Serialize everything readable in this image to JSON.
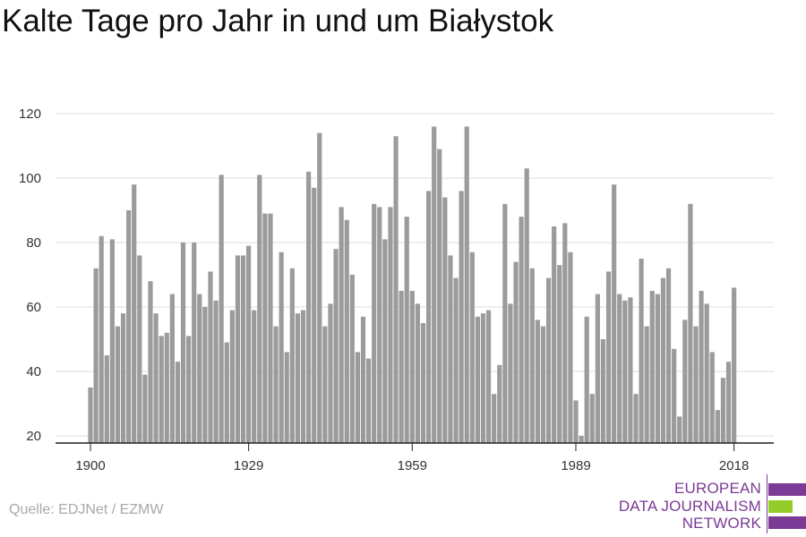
{
  "chart_data": {
    "type": "bar",
    "title": "Kalte Tage pro Jahr in und um Białystok",
    "x_start": 1900,
    "x_end": 2018,
    "x_ticks": [
      "1900",
      "1929",
      "1959",
      "1989",
      "2018"
    ],
    "y_ticks": [
      "20",
      "40",
      "60",
      "80",
      "100",
      "120"
    ],
    "ylim": [
      20,
      120
    ],
    "grid": true,
    "bar_color": "#9b9b9b",
    "values": [
      35,
      72,
      82,
      45,
      81,
      54,
      58,
      90,
      98,
      76,
      39,
      68,
      58,
      51,
      52,
      64,
      43,
      80,
      51,
      80,
      64,
      60,
      71,
      62,
      101,
      49,
      59,
      76,
      76,
      79,
      59,
      101,
      89,
      89,
      54,
      77,
      46,
      72,
      58,
      59,
      102,
      97,
      114,
      54,
      61,
      78,
      91,
      87,
      70,
      46,
      57,
      44,
      92,
      91,
      81,
      91,
      113,
      65,
      88,
      65,
      61,
      55,
      96,
      116,
      109,
      94,
      76,
      69,
      96,
      116,
      77,
      57,
      58,
      59,
      33,
      42,
      92,
      61,
      74,
      88,
      103,
      72,
      56,
      54,
      69,
      85,
      73,
      86,
      77,
      31,
      20,
      57,
      33,
      64,
      50,
      71,
      98,
      64,
      62,
      63,
      33,
      75,
      54,
      65,
      64,
      69,
      72,
      47,
      26,
      56,
      92,
      54,
      65,
      61,
      46,
      28,
      38,
      43,
      66
    ]
  },
  "source": "Quelle: EDJNet / EZMW",
  "logo": {
    "line1": "EUROPEAN",
    "line2": "DATA JOURNALISM",
    "line3": "NETWORK",
    "purple": "#7a3a96",
    "green": "#94cc2a"
  }
}
